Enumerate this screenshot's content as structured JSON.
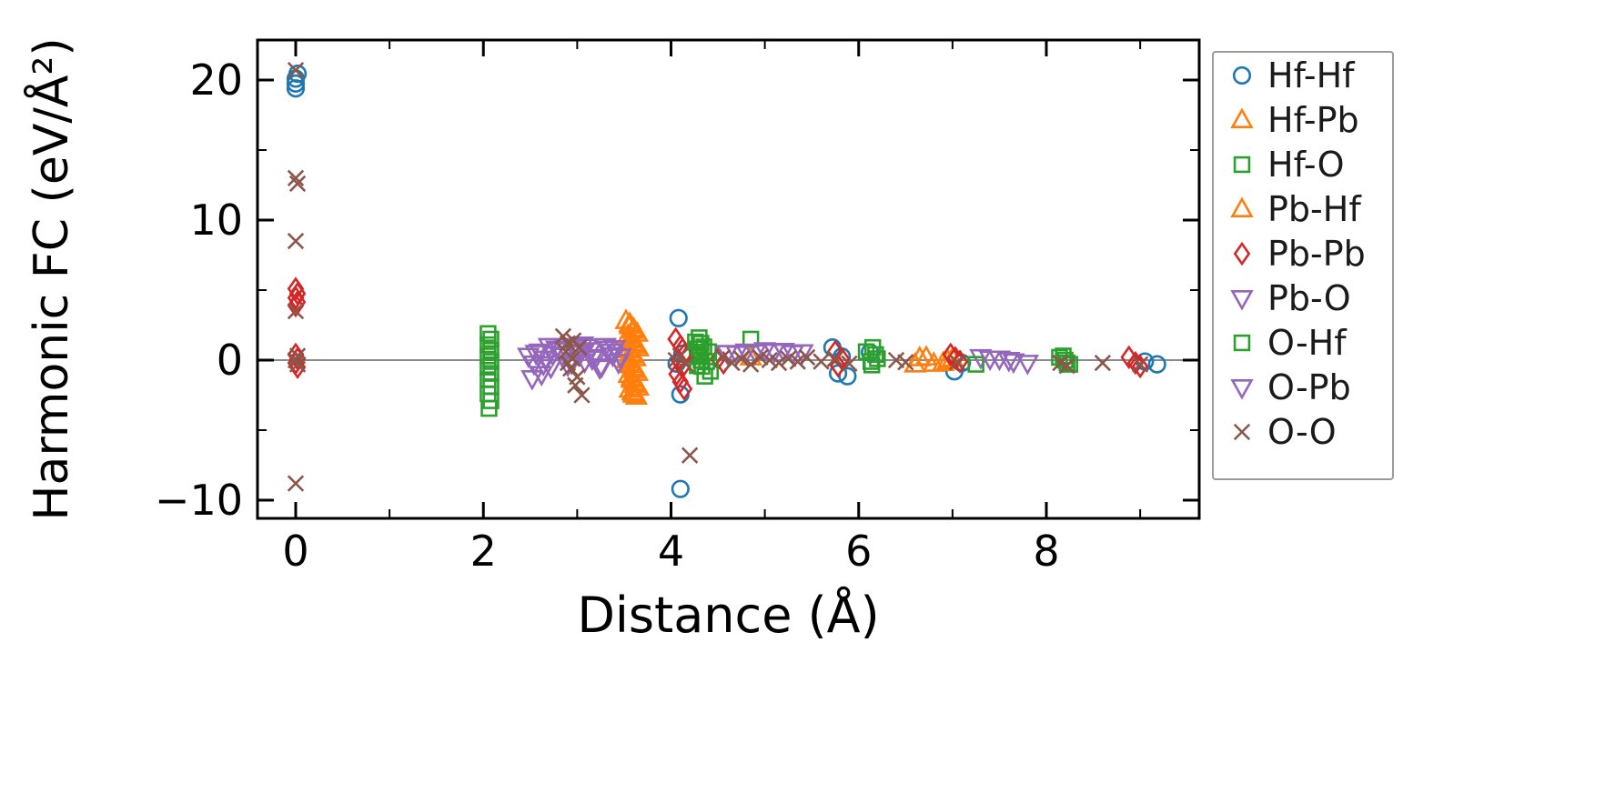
{
  "chart_data": {
    "type": "scatter",
    "title": "",
    "xlabel": "Distance (Å)",
    "ylabel": "Harmonic FC (eV/Å²)",
    "xlim": [
      -0.41,
      9.63
    ],
    "ylim": [
      -11.3,
      22.8
    ],
    "grid": false,
    "zero_line": true,
    "zero_line_color": "#8a8a8a",
    "legend_position": "outside-right",
    "x_ticks": {
      "major": [
        0,
        2,
        4,
        6,
        8
      ],
      "major_labels": [
        "0",
        "2",
        "4",
        "6",
        "8"
      ],
      "minor": [
        1,
        3,
        5,
        7,
        9
      ]
    },
    "y_ticks": {
      "major": [
        20,
        10,
        0,
        -10
      ],
      "major_labels": [
        "20",
        "10",
        "0",
        "−10"
      ],
      "minor": [
        15,
        5,
        -5
      ]
    },
    "series": [
      {
        "name": "Hf-Hf",
        "marker": "circle",
        "color": "#1f77b4",
        "points": [
          [
            0,
            19.4
          ],
          [
            0,
            19.75
          ],
          [
            0,
            20.1
          ],
          [
            0.02,
            20.45
          ],
          [
            4.08,
            3.0
          ],
          [
            4.1,
            -2.45
          ],
          [
            4.1,
            -9.2
          ],
          [
            4.12,
            0.45
          ],
          [
            4.06,
            -0.25
          ],
          [
            5.72,
            0.9
          ],
          [
            5.78,
            -0.95
          ],
          [
            5.88,
            -1.15
          ],
          [
            5.82,
            0.25
          ],
          [
            6.12,
            0.55
          ],
          [
            7.02,
            -0.8
          ],
          [
            7.1,
            -0.2
          ],
          [
            9.05,
            -0.1
          ],
          [
            9.18,
            -0.3
          ]
        ]
      },
      {
        "name": "Hf-Pb",
        "marker": "triangle-up",
        "color": "#ff7f0e",
        "points": [
          [
            3.52,
            2.8
          ],
          [
            3.56,
            2.45
          ],
          [
            3.6,
            2.1
          ],
          [
            3.54,
            1.75
          ],
          [
            3.58,
            1.4
          ],
          [
            3.62,
            1.05
          ],
          [
            3.55,
            0.7
          ],
          [
            3.59,
            0.35
          ],
          [
            3.53,
            0.0
          ],
          [
            3.57,
            -0.35
          ],
          [
            3.61,
            -0.7
          ],
          [
            3.55,
            -1.05
          ],
          [
            3.58,
            -1.4
          ],
          [
            3.62,
            -1.75
          ],
          [
            3.56,
            -2.1
          ],
          [
            3.6,
            -2.45
          ],
          [
            4.85,
            0.2
          ],
          [
            6.6,
            -0.3
          ],
          [
            6.72,
            0.2
          ],
          [
            6.9,
            -0.2
          ],
          [
            7.0,
            0.1
          ]
        ]
      },
      {
        "name": "Hf-O",
        "marker": "square",
        "color": "#2ca02c",
        "points": [
          [
            2.05,
            1.9
          ],
          [
            2.08,
            1.5
          ],
          [
            2.05,
            1.1
          ],
          [
            2.08,
            0.7
          ],
          [
            2.05,
            0.3
          ],
          [
            2.08,
            -0.1
          ],
          [
            2.05,
            -0.5
          ],
          [
            2.08,
            -0.95
          ],
          [
            2.05,
            -1.4
          ],
          [
            2.08,
            -1.9
          ],
          [
            2.05,
            -2.4
          ],
          [
            2.08,
            -2.9
          ],
          [
            2.06,
            -3.45
          ],
          [
            4.3,
            1.6
          ],
          [
            4.32,
            1.2
          ],
          [
            4.28,
            0.8
          ],
          [
            4.3,
            0.4
          ],
          [
            4.32,
            0.0
          ],
          [
            4.28,
            -0.4
          ],
          [
            4.85,
            1.5
          ],
          [
            6.15,
            0.9
          ],
          [
            6.18,
            0.4
          ],
          [
            6.13,
            -0.1
          ],
          [
            8.18,
            0.3
          ],
          [
            8.22,
            -0.2
          ]
        ]
      },
      {
        "name": "Pb-Hf",
        "marker": "triangle-up",
        "color": "#ff7f0e",
        "points": [
          [
            3.56,
            2.6
          ],
          [
            3.6,
            2.25
          ],
          [
            3.64,
            1.9
          ],
          [
            3.57,
            1.55
          ],
          [
            3.61,
            1.2
          ],
          [
            3.65,
            0.85
          ],
          [
            3.58,
            0.5
          ],
          [
            3.62,
            0.15
          ],
          [
            3.56,
            -0.2
          ],
          [
            3.6,
            -0.55
          ],
          [
            3.64,
            -0.9
          ],
          [
            3.58,
            -1.25
          ],
          [
            3.61,
            -1.6
          ],
          [
            3.65,
            -1.95
          ],
          [
            3.59,
            -2.3
          ],
          [
            3.63,
            -2.6
          ],
          [
            6.65,
            0.15
          ],
          [
            6.8,
            -0.25
          ],
          [
            6.95,
            -0.05
          ]
        ]
      },
      {
        "name": "Pb-Pb",
        "marker": "diamond",
        "color": "#d62728",
        "points": [
          [
            0,
            5.1
          ],
          [
            0.02,
            4.75
          ],
          [
            0,
            4.45
          ],
          [
            0.02,
            4.15
          ],
          [
            0,
            3.9
          ],
          [
            0,
            0.4
          ],
          [
            0.02,
            0.1
          ],
          [
            0,
            -0.2
          ],
          [
            0.02,
            -0.5
          ],
          [
            4.05,
            1.5
          ],
          [
            4.1,
            1.0
          ],
          [
            4.15,
            0.5
          ],
          [
            4.08,
            0.0
          ],
          [
            4.12,
            -0.5
          ],
          [
            4.06,
            -1.0
          ],
          [
            4.1,
            -1.55
          ],
          [
            4.14,
            -2.05
          ],
          [
            4.5,
            0.1
          ],
          [
            4.56,
            -0.2
          ],
          [
            5.75,
            0.6
          ],
          [
            5.82,
            0.1
          ],
          [
            5.78,
            -0.4
          ],
          [
            6.98,
            0.4
          ],
          [
            7.08,
            -0.1
          ],
          [
            7.03,
            0.15
          ],
          [
            8.88,
            0.2
          ],
          [
            8.95,
            -0.2
          ],
          [
            9.0,
            -0.45
          ]
        ]
      },
      {
        "name": "Pb-O",
        "marker": "triangle-down",
        "color": "#9467bd",
        "points": [
          [
            2.48,
            0.3
          ],
          [
            2.54,
            -0.25
          ],
          [
            2.6,
            0.6
          ],
          [
            2.66,
            0.1
          ],
          [
            2.72,
            -0.5
          ],
          [
            2.78,
            0.8
          ],
          [
            2.84,
            0.3
          ],
          [
            2.9,
            -0.35
          ],
          [
            2.96,
            0.9
          ],
          [
            3.02,
            0.45
          ],
          [
            3.08,
            -0.1
          ],
          [
            3.14,
            0.7
          ],
          [
            3.2,
            0.2
          ],
          [
            3.26,
            -0.45
          ],
          [
            3.32,
            0.8
          ],
          [
            3.38,
            0.35
          ],
          [
            3.44,
            -0.15
          ],
          [
            2.52,
            -1.3
          ],
          [
            2.62,
            -1.0
          ],
          [
            2.86,
            1.0
          ],
          [
            3.06,
            1.1
          ],
          [
            3.3,
            1.0
          ],
          [
            4.6,
            0.5
          ],
          [
            4.8,
            0.6
          ],
          [
            5.0,
            0.7
          ],
          [
            5.2,
            0.65
          ],
          [
            5.4,
            0.55
          ],
          [
            7.3,
            0.2
          ],
          [
            7.5,
            0.1
          ],
          [
            7.65,
            -0.1
          ],
          [
            7.8,
            -0.2
          ]
        ]
      },
      {
        "name": "O-Hf",
        "marker": "square",
        "color": "#2ca02c",
        "points": [
          [
            4.26,
            1.3
          ],
          [
            4.35,
            0.95
          ],
          [
            4.4,
            0.6
          ],
          [
            4.3,
            0.25
          ],
          [
            4.38,
            -0.1
          ],
          [
            4.33,
            -0.45
          ],
          [
            4.42,
            -0.8
          ],
          [
            4.36,
            -1.15
          ],
          [
            6.08,
            0.6
          ],
          [
            6.2,
            0.1
          ],
          [
            6.14,
            -0.35
          ],
          [
            7.25,
            -0.3
          ],
          [
            8.14,
            0.2
          ],
          [
            8.25,
            -0.3
          ],
          [
            8.2,
            0.0
          ]
        ]
      },
      {
        "name": "O-Pb",
        "marker": "triangle-down",
        "color": "#9467bd",
        "points": [
          [
            2.56,
            0.5
          ],
          [
            2.64,
            -0.3
          ],
          [
            2.74,
            0.4
          ],
          [
            2.82,
            0.7
          ],
          [
            2.94,
            -0.2
          ],
          [
            3.04,
            0.55
          ],
          [
            3.16,
            0.1
          ],
          [
            3.24,
            -0.55
          ],
          [
            3.36,
            0.6
          ],
          [
            3.46,
            0.25
          ],
          [
            2.7,
            1.0
          ],
          [
            3.1,
            0.95
          ],
          [
            3.4,
            0.85
          ],
          [
            4.7,
            0.45
          ],
          [
            4.9,
            0.55
          ],
          [
            5.1,
            0.6
          ],
          [
            5.3,
            0.5
          ],
          [
            7.4,
            0.1
          ],
          [
            7.6,
            0.0
          ]
        ]
      },
      {
        "name": "O-O",
        "marker": "x",
        "color": "#8c564b",
        "points": [
          [
            0,
            20.7
          ],
          [
            0,
            13.0
          ],
          [
            0.02,
            12.6
          ],
          [
            0,
            8.5
          ],
          [
            0,
            3.5
          ],
          [
            0.02,
            0.3
          ],
          [
            0,
            0.0
          ],
          [
            0.02,
            -0.3
          ],
          [
            0,
            -8.8
          ],
          [
            2.85,
            1.7
          ],
          [
            2.9,
            1.2
          ],
          [
            2.88,
            0.6
          ],
          [
            2.95,
            0.1
          ],
          [
            2.93,
            -0.6
          ],
          [
            3.0,
            -1.2
          ],
          [
            2.98,
            -1.8
          ],
          [
            3.05,
            -2.5
          ],
          [
            2.9,
            -0.2
          ],
          [
            3.02,
            0.9
          ],
          [
            2.96,
            1.4
          ],
          [
            4.1,
            0.3
          ],
          [
            4.16,
            -0.3
          ],
          [
            4.2,
            -6.8
          ],
          [
            4.05,
            0.0
          ],
          [
            4.55,
            0.2
          ],
          [
            4.65,
            -0.2
          ],
          [
            4.75,
            0.1
          ],
          [
            4.85,
            -0.3
          ],
          [
            4.95,
            0.2
          ],
          [
            5.05,
            0.0
          ],
          [
            5.15,
            -0.2
          ],
          [
            5.25,
            0.1
          ],
          [
            5.35,
            -0.1
          ],
          [
            5.45,
            0.2
          ],
          [
            5.6,
            -0.1
          ],
          [
            5.75,
            0.1
          ],
          [
            5.9,
            -0.25
          ],
          [
            6.4,
            0.0
          ],
          [
            6.5,
            -0.15
          ],
          [
            7.05,
            -0.15
          ],
          [
            8.15,
            -0.2
          ],
          [
            8.22,
            -0.4
          ],
          [
            8.6,
            -0.2
          ],
          [
            9.0,
            -0.3
          ]
        ]
      }
    ]
  }
}
